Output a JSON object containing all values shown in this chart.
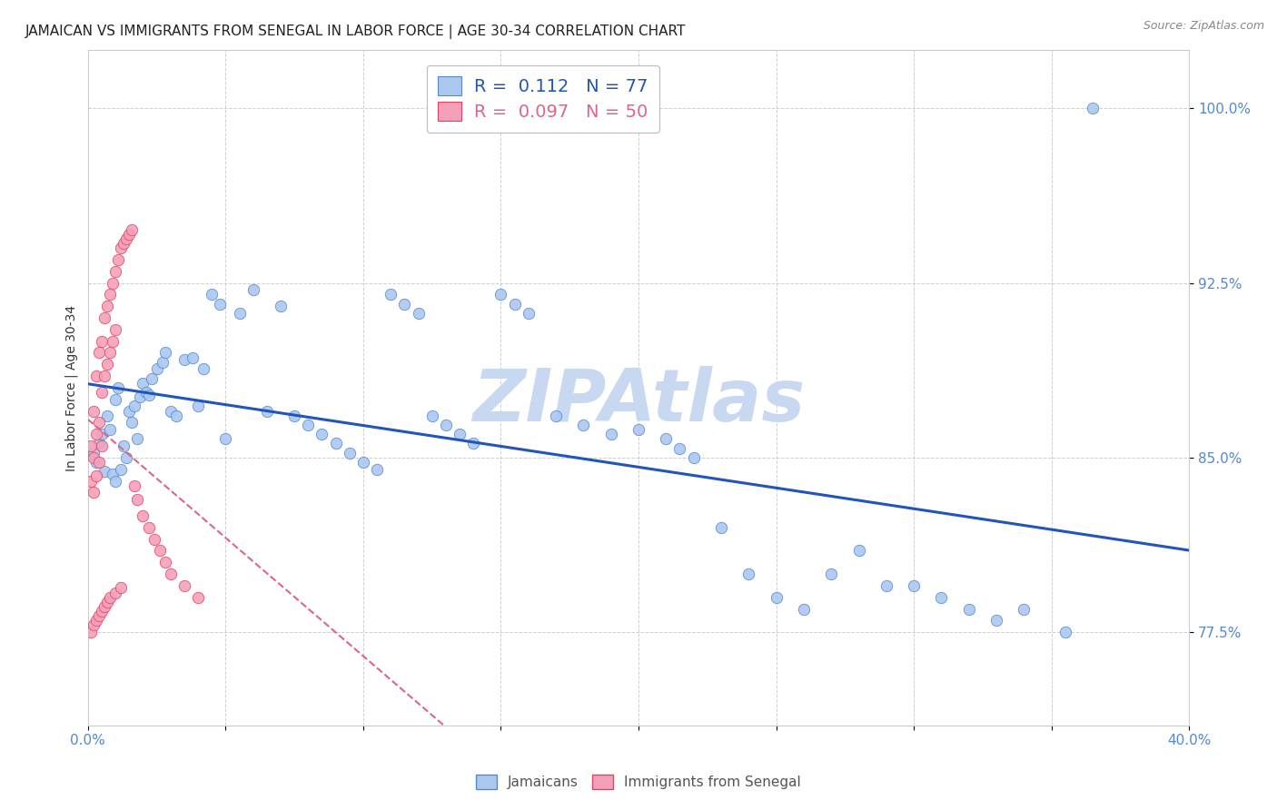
{
  "title": "JAMAICAN VS IMMIGRANTS FROM SENEGAL IN LABOR FORCE | AGE 30-34 CORRELATION CHART",
  "source": "Source: ZipAtlas.com",
  "ylabel": "In Labor Force | Age 30-34",
  "xlim": [
    0.0,
    0.4
  ],
  "ylim": [
    0.735,
    1.025
  ],
  "xticks": [
    0.0,
    0.05,
    0.1,
    0.15,
    0.2,
    0.25,
    0.3,
    0.35,
    0.4
  ],
  "xtick_labels": [
    "0.0%",
    "",
    "",
    "",
    "",
    "",
    "",
    "",
    "40.0%"
  ],
  "ytick_vals": [
    0.775,
    0.85,
    0.925,
    1.0
  ],
  "ytick_labels": [
    "77.5%",
    "85.0%",
    "92.5%",
    "100.0%"
  ],
  "blue_color": "#aac8f0",
  "blue_edge": "#5588cc",
  "pink_color": "#f5a0b8",
  "pink_edge": "#dd4466",
  "blue_line_color": "#2255bb",
  "pink_line_color": "#dd6688",
  "watermark": "ZIPAtlas",
  "watermark_color": "#c8d8f0",
  "background_color": "#ffffff",
  "grid_color": "#bbbbbb",
  "title_color": "#222222",
  "axis_color": "#5588cc",
  "title_fontsize": 11,
  "label_fontsize": 10,
  "tick_fontsize": 11,
  "jamaicans_x": [
    0.002,
    0.003,
    0.004,
    0.005,
    0.006,
    0.007,
    0.008,
    0.009,
    0.01,
    0.01,
    0.011,
    0.012,
    0.013,
    0.014,
    0.015,
    0.016,
    0.017,
    0.018,
    0.019,
    0.02,
    0.021,
    0.022,
    0.023,
    0.025,
    0.027,
    0.028,
    0.03,
    0.032,
    0.035,
    0.038,
    0.04,
    0.042,
    0.045,
    0.048,
    0.05,
    0.055,
    0.06,
    0.065,
    0.07,
    0.075,
    0.08,
    0.085,
    0.09,
    0.095,
    0.1,
    0.105,
    0.11,
    0.115,
    0.12,
    0.125,
    0.13,
    0.135,
    0.14,
    0.15,
    0.155,
    0.16,
    0.17,
    0.18,
    0.19,
    0.2,
    0.21,
    0.215,
    0.22,
    0.23,
    0.24,
    0.25,
    0.26,
    0.27,
    0.28,
    0.29,
    0.3,
    0.31,
    0.32,
    0.33,
    0.34,
    0.355,
    0.365
  ],
  "jamaicans_y": [
    0.852,
    0.848,
    0.856,
    0.86,
    0.844,
    0.868,
    0.862,
    0.843,
    0.875,
    0.84,
    0.88,
    0.845,
    0.855,
    0.85,
    0.87,
    0.865,
    0.872,
    0.858,
    0.876,
    0.882,
    0.878,
    0.877,
    0.884,
    0.888,
    0.891,
    0.895,
    0.87,
    0.868,
    0.892,
    0.893,
    0.872,
    0.888,
    0.92,
    0.916,
    0.858,
    0.912,
    0.922,
    0.87,
    0.915,
    0.868,
    0.864,
    0.86,
    0.856,
    0.852,
    0.848,
    0.845,
    0.92,
    0.916,
    0.912,
    0.868,
    0.864,
    0.86,
    0.856,
    0.92,
    0.916,
    0.912,
    0.868,
    0.864,
    0.86,
    0.862,
    0.858,
    0.854,
    0.85,
    0.82,
    0.8,
    0.79,
    0.785,
    0.8,
    0.81,
    0.795,
    0.795,
    0.79,
    0.785,
    0.78,
    0.785,
    0.775,
    1.0
  ],
  "senegal_x": [
    0.001,
    0.001,
    0.002,
    0.002,
    0.002,
    0.003,
    0.003,
    0.003,
    0.004,
    0.004,
    0.004,
    0.005,
    0.005,
    0.005,
    0.006,
    0.006,
    0.007,
    0.007,
    0.008,
    0.008,
    0.009,
    0.009,
    0.01,
    0.01,
    0.011,
    0.012,
    0.013,
    0.014,
    0.015,
    0.016,
    0.017,
    0.018,
    0.02,
    0.022,
    0.024,
    0.026,
    0.028,
    0.03,
    0.035,
    0.04,
    0.001,
    0.002,
    0.003,
    0.004,
    0.005,
    0.006,
    0.007,
    0.008,
    0.01,
    0.012
  ],
  "senegal_y": [
    0.855,
    0.84,
    0.87,
    0.85,
    0.835,
    0.885,
    0.86,
    0.842,
    0.895,
    0.865,
    0.848,
    0.9,
    0.878,
    0.855,
    0.91,
    0.885,
    0.915,
    0.89,
    0.92,
    0.895,
    0.925,
    0.9,
    0.93,
    0.905,
    0.935,
    0.94,
    0.942,
    0.944,
    0.946,
    0.948,
    0.838,
    0.832,
    0.825,
    0.82,
    0.815,
    0.81,
    0.805,
    0.8,
    0.795,
    0.79,
    0.775,
    0.778,
    0.78,
    0.782,
    0.784,
    0.786,
    0.788,
    0.79,
    0.792,
    0.794
  ]
}
